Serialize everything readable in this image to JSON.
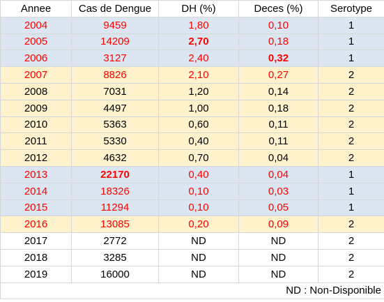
{
  "headers": [
    "Annee",
    "Cas de Dengue",
    "DH (%)",
    "Deces (%)",
    "Serotype"
  ],
  "rows": [
    {
      "band": "blue",
      "red": true,
      "cells": [
        "2004",
        "9459",
        "1,80",
        "0,10",
        "1"
      ],
      "bold": []
    },
    {
      "band": "blue",
      "red": true,
      "cells": [
        "2005",
        "14209",
        "2,70",
        "0,18",
        "1"
      ],
      "bold": [
        2
      ]
    },
    {
      "band": "blue",
      "red": true,
      "cells": [
        "2006",
        "3127",
        "2,40",
        "0,32",
        "1"
      ],
      "bold": [
        3
      ]
    },
    {
      "band": "yellow",
      "red": true,
      "cells": [
        "2007",
        "8826",
        "2,10",
        "0,27",
        "2"
      ],
      "bold": []
    },
    {
      "band": "yellow",
      "red": false,
      "cells": [
        "2008",
        "7031",
        "1,20",
        "0,14",
        "2"
      ],
      "bold": []
    },
    {
      "band": "yellow",
      "red": false,
      "cells": [
        "2009",
        "4497",
        "1,00",
        "0,18",
        "2"
      ],
      "bold": []
    },
    {
      "band": "yellow",
      "red": false,
      "cells": [
        "2010",
        "5363",
        "0,60",
        "0,11",
        "2"
      ],
      "bold": []
    },
    {
      "band": "yellow",
      "red": false,
      "cells": [
        "2011",
        "5330",
        "0,40",
        "0,11",
        "2"
      ],
      "bold": []
    },
    {
      "band": "yellow",
      "red": false,
      "cells": [
        "2012",
        "4632",
        "0,70",
        "0,04",
        "2"
      ],
      "bold": []
    },
    {
      "band": "blue",
      "red": true,
      "cells": [
        "2013",
        "22170",
        "0,40",
        "0,04",
        "1"
      ],
      "bold": [
        1
      ]
    },
    {
      "band": "blue",
      "red": true,
      "cells": [
        "2014",
        "18326",
        "0,10",
        "0,03",
        "1"
      ],
      "bold": []
    },
    {
      "band": "blue",
      "red": true,
      "cells": [
        "2015",
        "11294",
        "0,10",
        "0,05",
        "1"
      ],
      "bold": []
    },
    {
      "band": "yellow",
      "red": true,
      "cells": [
        "2016",
        "13085",
        "0,20",
        "0,09",
        "2"
      ],
      "bold": []
    },
    {
      "band": "white",
      "red": false,
      "cells": [
        "2017",
        "2772",
        "ND",
        "ND",
        "2"
      ],
      "bold": []
    },
    {
      "band": "white",
      "red": false,
      "cells": [
        "2018",
        "3285",
        "ND",
        "ND",
        "2"
      ],
      "bold": []
    },
    {
      "band": "white",
      "red": false,
      "cells": [
        "2019",
        "16000",
        "ND",
        "ND",
        "2"
      ],
      "bold": []
    }
  ],
  "footnote": "ND : Non-Disponible",
  "colors": {
    "blue_band": "#dce6f1",
    "yellow_band": "#fff2cc",
    "red_text": "#ff0000",
    "grid": "#d7d7d7"
  }
}
